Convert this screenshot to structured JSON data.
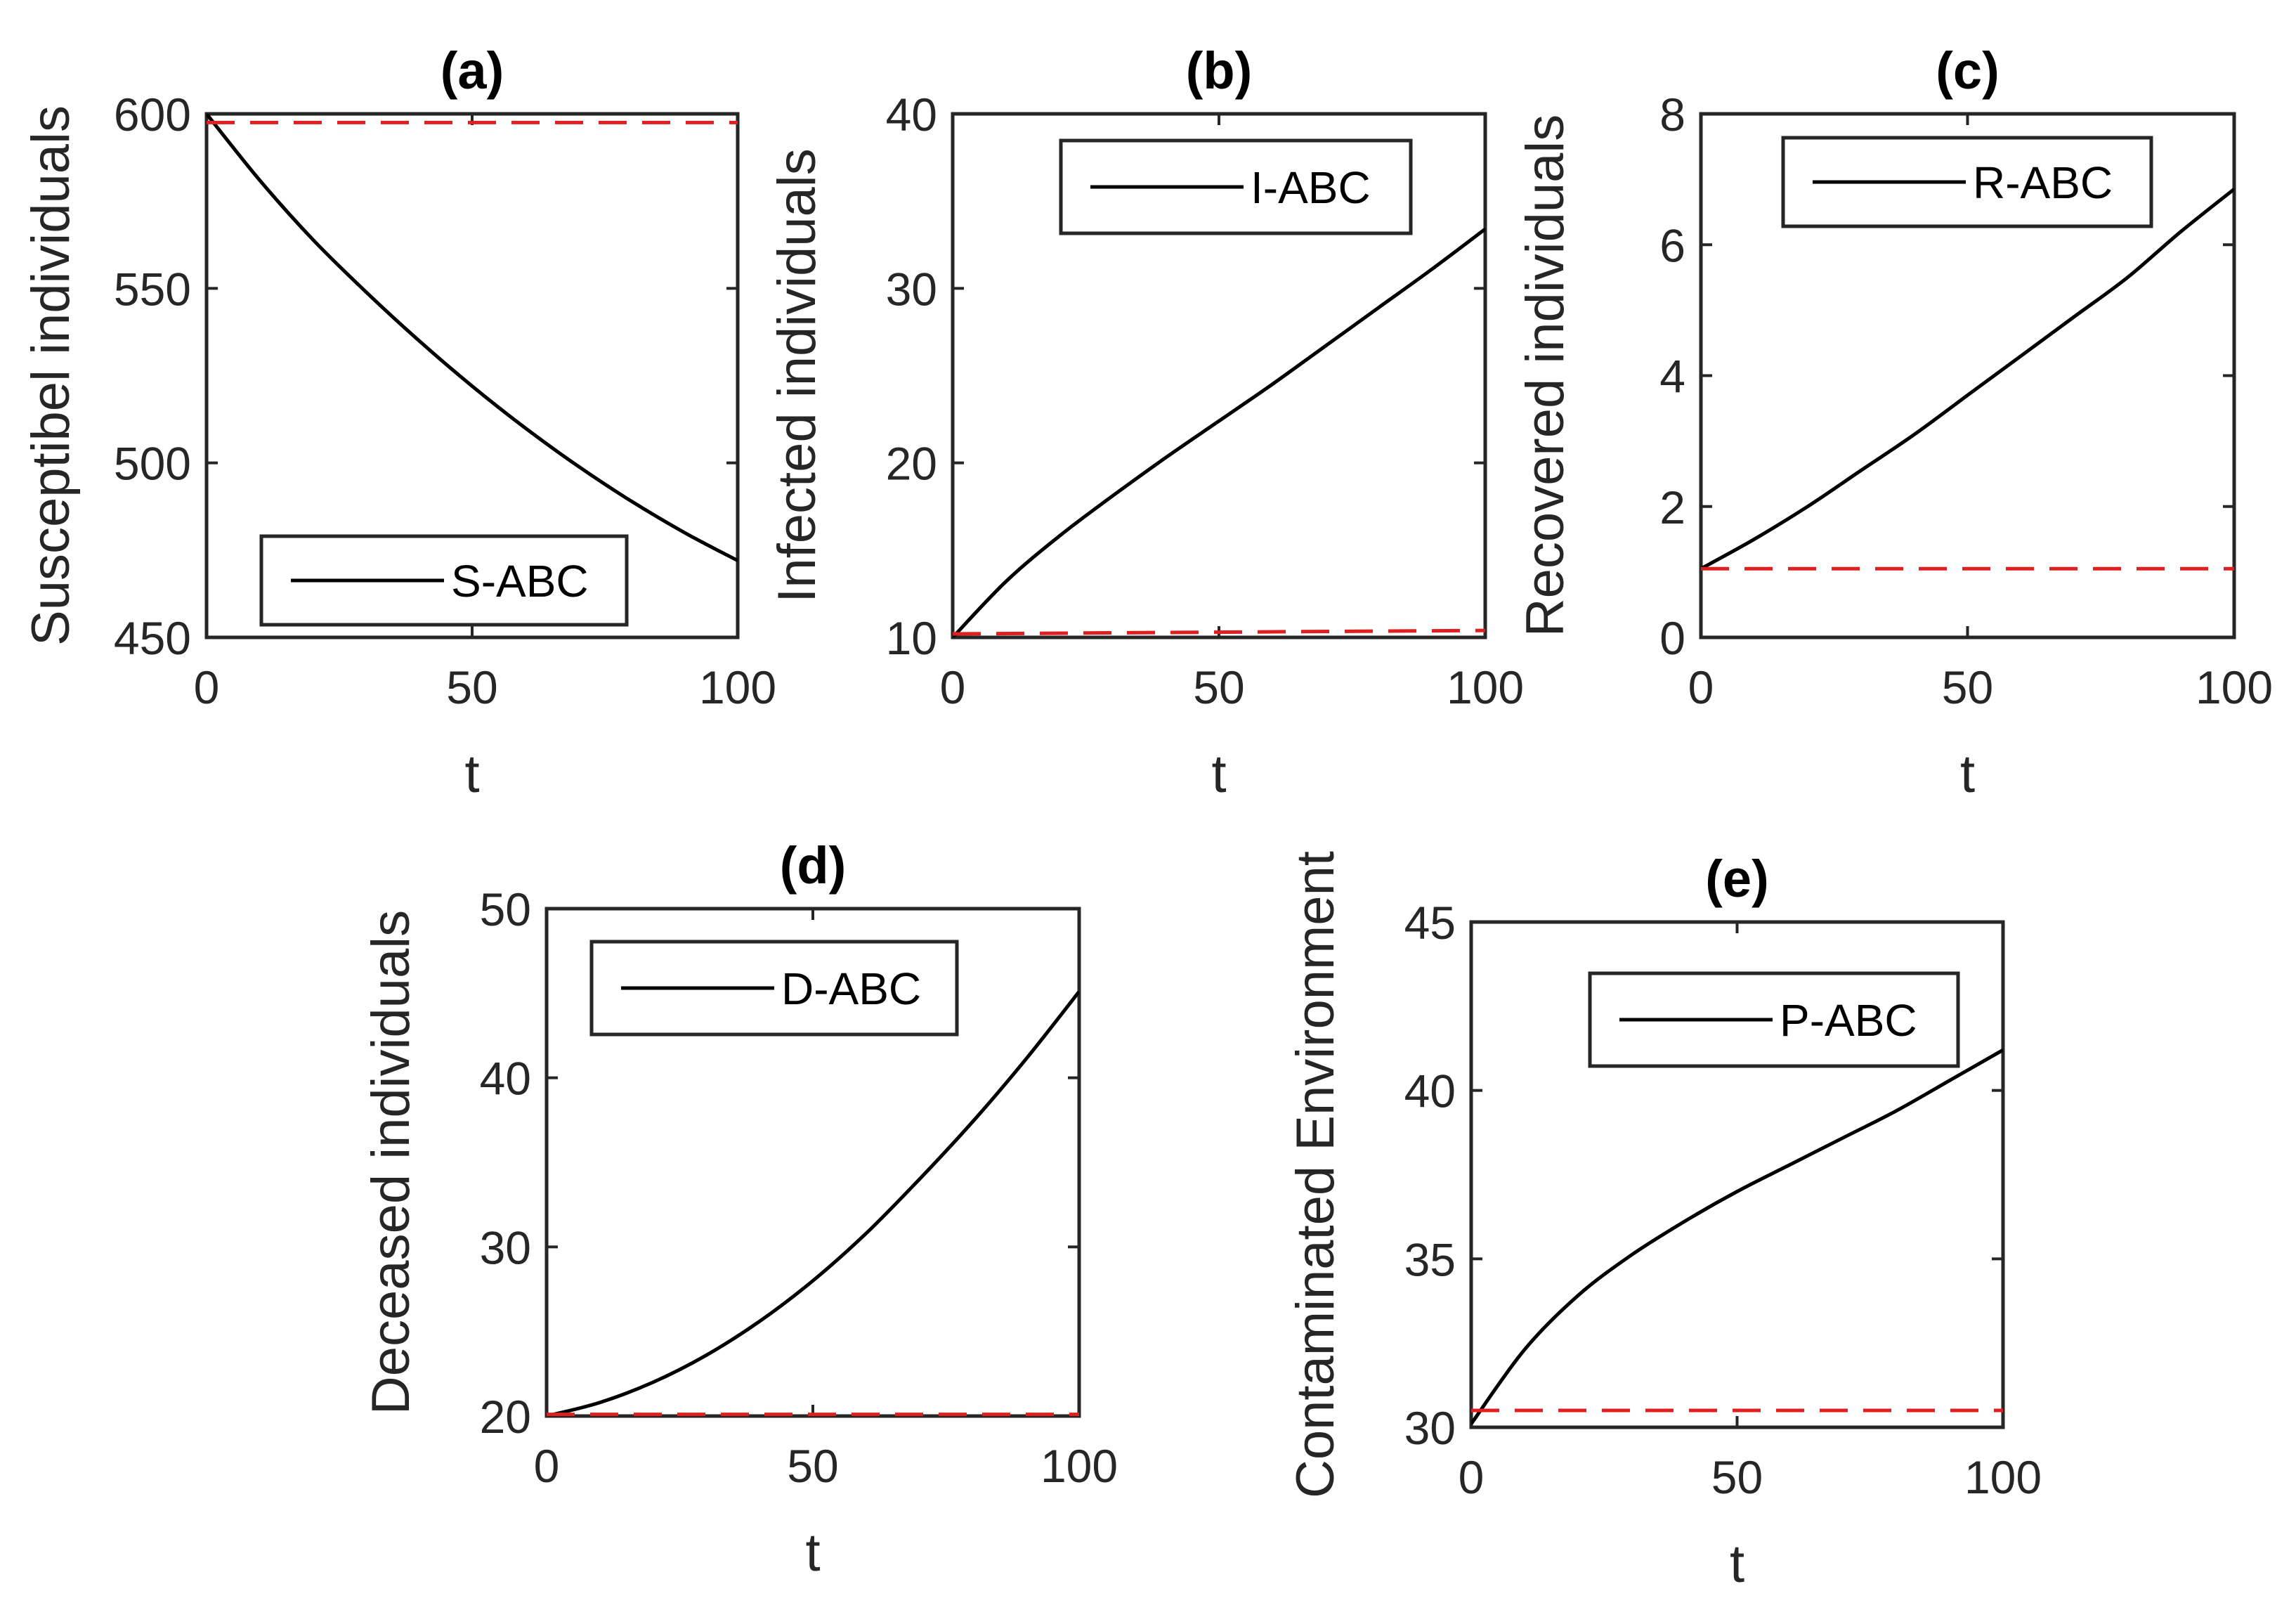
{
  "chart_data": [
    {
      "type": "line",
      "title": "(a)",
      "xlabel": "t",
      "ylabel": "Susceptibel individuals",
      "xlim": [
        0,
        100
      ],
      "ylim": [
        450,
        600
      ],
      "xticks": [
        0,
        50,
        100
      ],
      "yticks": [
        450,
        500,
        550,
        600
      ],
      "legend": {
        "entries": [
          "S-ABC"
        ],
        "placement": "bottom-center"
      },
      "series": [
        {
          "name": "S-ABC",
          "style": "solid",
          "color": "#000000",
          "x": [
            0,
            10,
            20,
            30,
            40,
            50,
            60,
            70,
            80,
            90,
            100
          ],
          "y": [
            600,
            581,
            564,
            549,
            535,
            522,
            510,
            499,
            489,
            480,
            472
          ]
        },
        {
          "name": "reference",
          "style": "dashed",
          "color": "#e02020",
          "x": [
            0,
            100
          ],
          "y": [
            597.5,
            597.5
          ]
        }
      ]
    },
    {
      "type": "line",
      "title": "(b)",
      "xlabel": "t",
      "ylabel": "Infected individuals",
      "xlim": [
        0,
        100
      ],
      "ylim": [
        10,
        40
      ],
      "xticks": [
        0,
        50,
        100
      ],
      "yticks": [
        10,
        20,
        30,
        40
      ],
      "legend": {
        "entries": [
          "I-ABC"
        ],
        "placement": "top-center"
      },
      "series": [
        {
          "name": "I-ABC",
          "style": "solid",
          "color": "#000000",
          "x": [
            0,
            10,
            20,
            30,
            40,
            50,
            60,
            70,
            80,
            90,
            100
          ],
          "y": [
            10,
            13.2,
            15.8,
            18.1,
            20.3,
            22.4,
            24.5,
            26.7,
            28.9,
            31.1,
            33.4
          ]
        },
        {
          "name": "reference",
          "style": "dashed",
          "color": "#e02020",
          "x": [
            0,
            100
          ],
          "y": [
            10.2,
            10.4
          ]
        }
      ]
    },
    {
      "type": "line",
      "title": "(c)",
      "xlabel": "t",
      "ylabel": "Recovered individuals",
      "xlim": [
        0,
        100
      ],
      "ylim": [
        0,
        8
      ],
      "xticks": [
        0,
        50,
        100
      ],
      "yticks": [
        0,
        2,
        4,
        6,
        8
      ],
      "legend": {
        "entries": [
          "R-ABC"
        ],
        "placement": "top-center"
      },
      "series": [
        {
          "name": "R-ABC",
          "style": "solid",
          "color": "#000000",
          "x": [
            0,
            10,
            20,
            30,
            40,
            50,
            60,
            70,
            80,
            90,
            100
          ],
          "y": [
            1.05,
            1.5,
            2.0,
            2.55,
            3.1,
            3.7,
            4.3,
            4.9,
            5.5,
            6.2,
            6.85
          ]
        },
        {
          "name": "reference",
          "style": "dashed",
          "color": "#e02020",
          "x": [
            0,
            100
          ],
          "y": [
            1.05,
            1.05
          ]
        }
      ]
    },
    {
      "type": "line",
      "title": "(d)",
      "xlabel": "t",
      "ylabel": "Deceased individuals",
      "xlim": [
        0,
        100
      ],
      "ylim": [
        20,
        50
      ],
      "xticks": [
        0,
        50,
        100
      ],
      "yticks": [
        20,
        30,
        40,
        50
      ],
      "legend": {
        "entries": [
          "D-ABC"
        ],
        "placement": "top-center"
      },
      "series": [
        {
          "name": "D-ABC",
          "style": "solid",
          "color": "#000000",
          "x": [
            0,
            10,
            20,
            30,
            40,
            50,
            60,
            70,
            80,
            90,
            100
          ],
          "y": [
            20,
            20.8,
            22.0,
            23.6,
            25.6,
            28.0,
            30.8,
            34.0,
            37.4,
            41.1,
            45.1
          ]
        },
        {
          "name": "reference",
          "style": "dashed",
          "color": "#e02020",
          "x": [
            0,
            100
          ],
          "y": [
            20.1,
            20.1
          ]
        }
      ]
    },
    {
      "type": "line",
      "title": "(e)",
      "xlabel": "t",
      "ylabel": "Contaminated Environment",
      "xlim": [
        0,
        100
      ],
      "ylim": [
        30,
        45
      ],
      "xticks": [
        0,
        50,
        100
      ],
      "yticks": [
        30,
        35,
        40,
        45
      ],
      "legend": {
        "entries": [
          "P-ABC"
        ],
        "placement": "top-right"
      },
      "series": [
        {
          "name": "P-ABC",
          "style": "solid",
          "color": "#000000",
          "x": [
            0,
            10,
            20,
            30,
            40,
            50,
            60,
            70,
            80,
            90,
            100
          ],
          "y": [
            30.1,
            32.3,
            33.9,
            35.1,
            36.1,
            37.0,
            37.8,
            38.6,
            39.4,
            40.3,
            41.2
          ]
        },
        {
          "name": "reference",
          "style": "dashed",
          "color": "#e02020",
          "x": [
            0,
            100
          ],
          "y": [
            30.5,
            30.5
          ]
        }
      ]
    }
  ]
}
